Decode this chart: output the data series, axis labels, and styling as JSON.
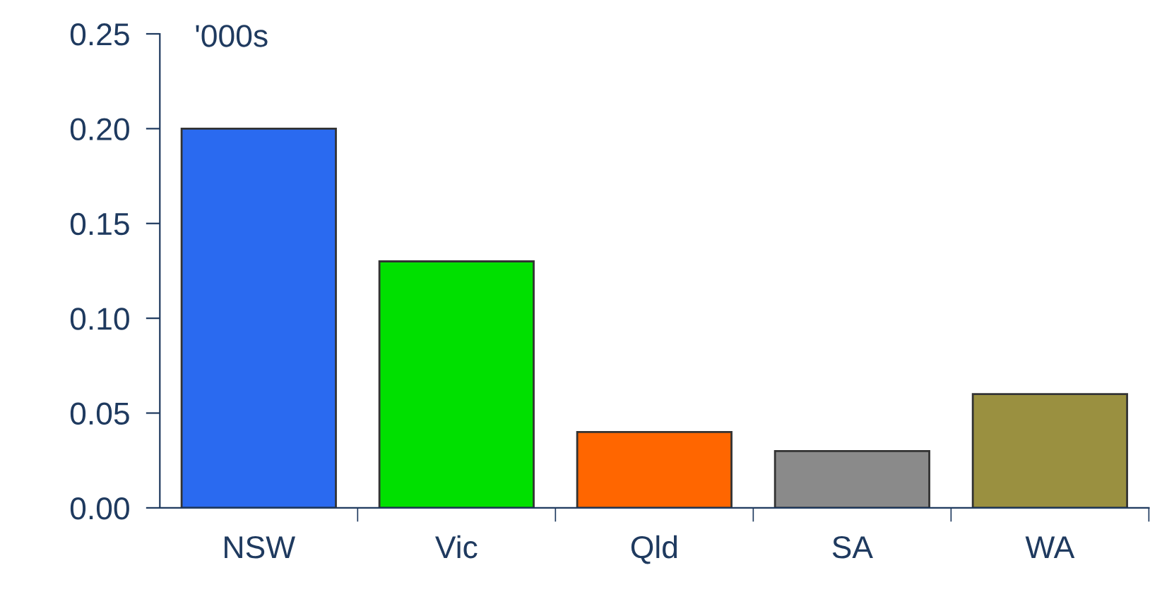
{
  "chart_data": {
    "type": "bar",
    "ylabel": "'000s",
    "categories": [
      "NSW",
      "Vic",
      "Qld",
      "SA",
      "WA"
    ],
    "values": [
      0.2,
      0.13,
      0.04,
      0.03,
      0.06
    ],
    "colors": [
      "#2a6af0",
      "#00e000",
      "#ff6600",
      "#8a8a8a",
      "#9a9040"
    ],
    "ylim": [
      0,
      0.25
    ],
    "yticks": [
      {
        "value": 0,
        "label": "0.00"
      },
      0.05,
      {
        "value": 0.1,
        "label": "0.10"
      },
      0.15,
      {
        "value": 0.2,
        "label": "0.20"
      },
      0.25
    ],
    "grid": false,
    "legend": false
  }
}
